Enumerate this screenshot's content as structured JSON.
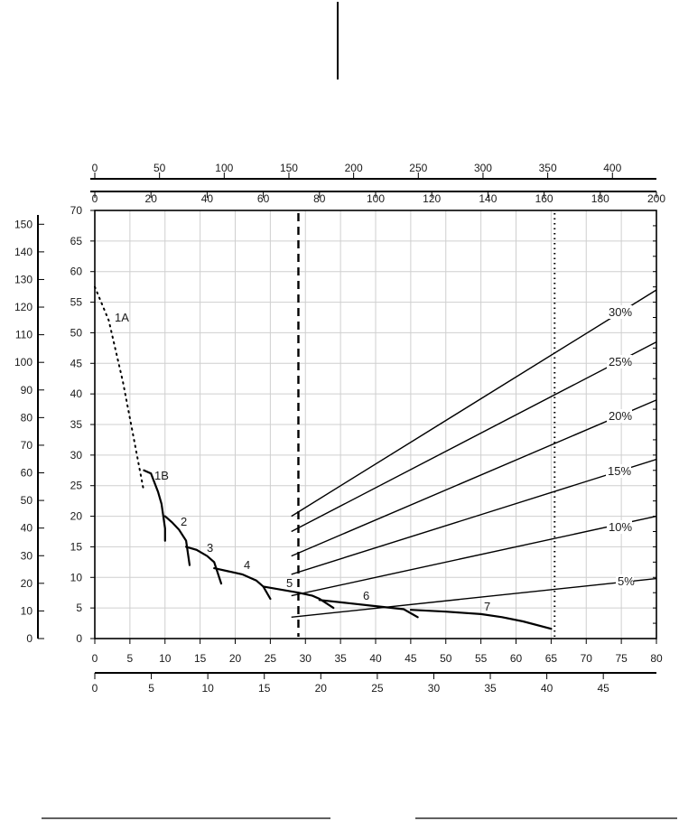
{
  "chart_data": {
    "type": "line",
    "title": "",
    "grid": true,
    "axes": {
      "bottom_primary": {
        "range": [
          0,
          80
        ],
        "ticks": [
          "0",
          "5",
          "10",
          "15",
          "20",
          "25",
          "30",
          "35",
          "40",
          "45",
          "50",
          "55",
          "60",
          "65",
          "70",
          "75",
          "80"
        ]
      },
      "bottom_secondary": {
        "range": [
          0,
          49.7
        ],
        "ticks": [
          "0",
          "5",
          "10",
          "15",
          "20",
          "25",
          "30",
          "35",
          "40",
          "45"
        ]
      },
      "left_primary": {
        "range": [
          0,
          70
        ],
        "ticks": [
          "0",
          "5",
          "10",
          "15",
          "20",
          "25",
          "30",
          "35",
          "40",
          "45",
          "50",
          "55",
          "60",
          "65",
          "70"
        ]
      },
      "left_secondary": {
        "range": [
          0,
          155
        ],
        "ticks": [
          "0",
          "10",
          "20",
          "30",
          "40",
          "50",
          "60",
          "70",
          "80",
          "90",
          "100",
          "110",
          "120",
          "130",
          "140",
          "150"
        ]
      },
      "top_inner": {
        "range": [
          0,
          200
        ],
        "ticks": [
          "0",
          "20",
          "40",
          "60",
          "80",
          "100",
          "120",
          "140",
          "160",
          "180",
          "200"
        ]
      },
      "top_outer": {
        "range": [
          0,
          434
        ],
        "ticks": [
          "0",
          "50",
          "100",
          "150",
          "200",
          "250",
          "300",
          "350",
          "400"
        ]
      }
    },
    "reference_lines": [
      {
        "x": 29,
        "style": "dashed"
      },
      {
        "x": 65.5,
        "style": "dotted"
      }
    ],
    "gear_curves": [
      {
        "name": "1A",
        "style": "dotted",
        "points": [
          [
            0,
            57.5
          ],
          [
            2,
            52
          ],
          [
            4,
            42
          ],
          [
            5.5,
            33
          ],
          [
            7,
            24
          ]
        ]
      },
      {
        "name": "1B",
        "points": [
          [
            7,
            27.5
          ],
          [
            8,
            27
          ],
          [
            9,
            24
          ],
          [
            9.5,
            22
          ],
          [
            10,
            18
          ],
          [
            10,
            16
          ]
        ]
      },
      {
        "name": "2",
        "points": [
          [
            10,
            20
          ],
          [
            11,
            19
          ],
          [
            12,
            17.8
          ],
          [
            13,
            16
          ],
          [
            13.5,
            12
          ]
        ]
      },
      {
        "name": "3",
        "points": [
          [
            13,
            15
          ],
          [
            14.5,
            14.5
          ],
          [
            16,
            13.5
          ],
          [
            17,
            12.5
          ],
          [
            18,
            9
          ]
        ]
      },
      {
        "name": "4",
        "points": [
          [
            17,
            11.5
          ],
          [
            19,
            11
          ],
          [
            21,
            10.5
          ],
          [
            23,
            9.5
          ],
          [
            24,
            8.5
          ],
          [
            25,
            6.5
          ]
        ]
      },
      {
        "name": "5",
        "points": [
          [
            24,
            8.5
          ],
          [
            26.5,
            8
          ],
          [
            29,
            7.5
          ],
          [
            31,
            7
          ],
          [
            32,
            6.5
          ],
          [
            34,
            5
          ]
        ]
      },
      {
        "name": "6",
        "points": [
          [
            32,
            6.3
          ],
          [
            36,
            5.8
          ],
          [
            40,
            5.3
          ],
          [
            44,
            4.8
          ],
          [
            46,
            3.5
          ]
        ]
      },
      {
        "name": "7",
        "points": [
          [
            45,
            4.7
          ],
          [
            50,
            4.4
          ],
          [
            55,
            4
          ],
          [
            58,
            3.5
          ],
          [
            61,
            2.8
          ],
          [
            65,
            1.6
          ]
        ]
      }
    ],
    "grade_lines": [
      {
        "name": "30%",
        "points": [
          [
            28,
            20
          ],
          [
            80,
            57
          ]
        ]
      },
      {
        "name": "25%",
        "points": [
          [
            28,
            17.5
          ],
          [
            80,
            48.5
          ]
        ]
      },
      {
        "name": "20%",
        "points": [
          [
            28,
            13.5
          ],
          [
            80,
            39
          ]
        ]
      },
      {
        "name": "15%",
        "points": [
          [
            28,
            10.5
          ],
          [
            80,
            29.3
          ]
        ]
      },
      {
        "name": "10%",
        "points": [
          [
            28,
            7
          ],
          [
            80,
            20
          ]
        ]
      },
      {
        "name": "5%",
        "points": [
          [
            28,
            3.5
          ],
          [
            80,
            9.8
          ]
        ]
      }
    ]
  }
}
